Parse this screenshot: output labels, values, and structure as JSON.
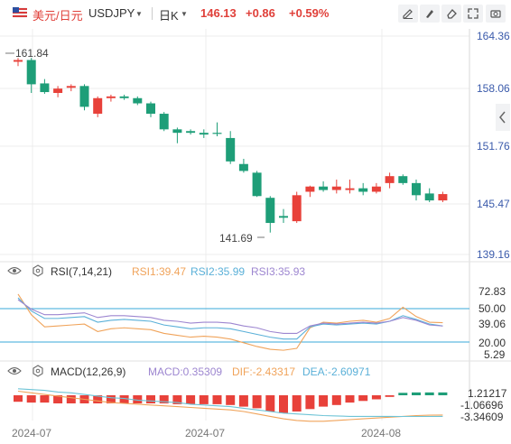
{
  "header": {
    "pair_name": "美元/日元",
    "code": "USDJPY",
    "period": "日K",
    "price": "146.13",
    "change": "+0.86",
    "change_pct": "+0.59%"
  },
  "colors": {
    "up": "#e8413a",
    "down": "#1e9e78",
    "rsi1": "#f0a35a",
    "rsi2": "#5ab0d8",
    "rsi3": "#9d86d0",
    "dif": "#f0a35a",
    "dea": "#6ec4d6",
    "level": "#3aa9d9"
  },
  "icons": [
    "flag-icon",
    "pencil-icon",
    "draw-icon",
    "eraser-icon",
    "fullscreen-icon",
    "camera-icon",
    "expand-side-icon",
    "eye-icon",
    "gear-icon"
  ],
  "chart_data": [
    {
      "type": "candlestick",
      "ylim": [
        139.16,
        164.36
      ],
      "y_ticks": [
        "164.36",
        "158.06",
        "151.76",
        "145.47",
        "139.16"
      ],
      "x_ticks": [
        "2024-07",
        "2024-07",
        "2024-08"
      ],
      "annotations": {
        "max": "161.84",
        "min": "141.69"
      },
      "candles": [
        {
          "o": 161.4,
          "h": 161.84,
          "l": 160.9,
          "c": 161.6
        },
        {
          "o": 161.6,
          "h": 161.84,
          "l": 157.8,
          "c": 158.8
        },
        {
          "o": 158.9,
          "h": 159.4,
          "l": 157.7,
          "c": 157.9
        },
        {
          "o": 157.8,
          "h": 158.6,
          "l": 157.3,
          "c": 158.3
        },
        {
          "o": 158.4,
          "h": 158.8,
          "l": 158.0,
          "c": 158.6
        },
        {
          "o": 158.6,
          "h": 158.8,
          "l": 155.8,
          "c": 156.2
        },
        {
          "o": 155.4,
          "h": 157.4,
          "l": 155.0,
          "c": 157.2
        },
        {
          "o": 157.2,
          "h": 157.6,
          "l": 156.8,
          "c": 157.4
        },
        {
          "o": 157.4,
          "h": 157.6,
          "l": 157.0,
          "c": 157.2
        },
        {
          "o": 157.2,
          "h": 157.4,
          "l": 156.4,
          "c": 156.6
        },
        {
          "o": 156.6,
          "h": 156.8,
          "l": 155.0,
          "c": 155.4
        },
        {
          "o": 155.4,
          "h": 155.6,
          "l": 153.4,
          "c": 153.6
        },
        {
          "o": 153.6,
          "h": 153.8,
          "l": 152.0,
          "c": 153.2
        },
        {
          "o": 153.4,
          "h": 153.6,
          "l": 153.0,
          "c": 153.2
        },
        {
          "o": 153.2,
          "h": 153.6,
          "l": 152.6,
          "c": 153.0
        },
        {
          "o": 153.2,
          "h": 154.4,
          "l": 152.8,
          "c": 153.1
        },
        {
          "o": 152.6,
          "h": 153.4,
          "l": 149.6,
          "c": 149.9
        },
        {
          "o": 149.6,
          "h": 150.2,
          "l": 148.6,
          "c": 148.8
        },
        {
          "o": 148.6,
          "h": 148.8,
          "l": 145.8,
          "c": 145.9
        },
        {
          "o": 145.7,
          "h": 145.9,
          "l": 141.69,
          "c": 142.8
        },
        {
          "o": 143.6,
          "h": 144.4,
          "l": 142.8,
          "c": 143.4
        },
        {
          "o": 143.0,
          "h": 146.4,
          "l": 142.8,
          "c": 146.0
        },
        {
          "o": 146.4,
          "h": 147.1,
          "l": 145.8,
          "c": 147.0
        },
        {
          "o": 147.0,
          "h": 147.6,
          "l": 146.4,
          "c": 146.6
        },
        {
          "o": 146.6,
          "h": 147.8,
          "l": 146.2,
          "c": 147.0
        },
        {
          "o": 146.6,
          "h": 147.8,
          "l": 146.2,
          "c": 146.8
        },
        {
          "o": 146.8,
          "h": 147.4,
          "l": 146.0,
          "c": 146.4
        },
        {
          "o": 146.4,
          "h": 147.4,
          "l": 146.2,
          "c": 147.0
        },
        {
          "o": 147.4,
          "h": 148.6,
          "l": 146.8,
          "c": 148.2
        },
        {
          "o": 148.2,
          "h": 148.4,
          "l": 147.2,
          "c": 147.4
        },
        {
          "o": 147.4,
          "h": 147.8,
          "l": 145.4,
          "c": 146.0
        },
        {
          "o": 146.2,
          "h": 146.8,
          "l": 145.2,
          "c": 145.4
        },
        {
          "o": 145.4,
          "h": 146.4,
          "l": 145.2,
          "c": 146.13
        }
      ]
    },
    {
      "type": "line",
      "title": "RSI(7,14,21)",
      "ylim": [
        5.29,
        72.83
      ],
      "y_ticks": [
        "72.83",
        "50.00",
        "39.06",
        "20.00",
        "5.29"
      ],
      "levels": [
        50,
        20
      ],
      "series": [
        {
          "name": "RSI1:39.47",
          "values": [
            70,
            48,
            35,
            36,
            37,
            38,
            30,
            33,
            34,
            33,
            32,
            28,
            26,
            24,
            25,
            24,
            22,
            18,
            14,
            11,
            10,
            12,
            34,
            40,
            39,
            41,
            42,
            40,
            44,
            56,
            46,
            40,
            39.47
          ]
        },
        {
          "name": "RSI2:35.99",
          "values": [
            66,
            52,
            44,
            44,
            45,
            46,
            40,
            42,
            43,
            42,
            41,
            37,
            35,
            33,
            34,
            34,
            33,
            30,
            27,
            24,
            22,
            22,
            35,
            38,
            37,
            38,
            39,
            38,
            41,
            47,
            43,
            38,
            35.99
          ]
        },
        {
          "name": "RSI3:35.93",
          "values": [
            64,
            54,
            48,
            48,
            49,
            50,
            45,
            47,
            47,
            46,
            45,
            42,
            41,
            39,
            40,
            40,
            39,
            36,
            34,
            30,
            28,
            28,
            36,
            39,
            38,
            39,
            40,
            39,
            41,
            45,
            42,
            37,
            35.93
          ]
        }
      ]
    },
    {
      "type": "bar",
      "title": "MACD(12,26,9)",
      "y_ticks": [
        "1.21217",
        "-1.06696",
        "-3.34609"
      ],
      "series": [
        {
          "name": "MACD:0.35309",
          "values": [
            -0.8,
            -0.9,
            -0.9,
            -1.0,
            -1.0,
            -1.0,
            -1.0,
            -1.0,
            -1.0,
            -1.0,
            -1.0,
            -1.0,
            -1.1,
            -1.1,
            -1.1,
            -1.1,
            -1.2,
            -1.4,
            -1.6,
            -2.0,
            -2.2,
            -2.0,
            -1.7,
            -1.4,
            -1.2,
            -0.9,
            -0.7,
            -0.5,
            -0.2,
            0.3,
            0.35,
            0.35,
            0.35
          ]
        },
        {
          "name": "DIF:-2.43317",
          "values": [
            0.5,
            0.3,
            0.1,
            -0.1,
            -0.3,
            -0.5,
            -0.7,
            -0.9,
            -1.0,
            -1.1,
            -1.2,
            -1.3,
            -1.4,
            -1.5,
            -1.6,
            -1.7,
            -1.8,
            -2.0,
            -2.3,
            -2.6,
            -2.9,
            -3.1,
            -3.2,
            -3.2,
            -3.1,
            -3.0,
            -2.9,
            -2.8,
            -2.7,
            -2.6,
            -2.5,
            -2.45,
            -2.43317
          ]
        },
        {
          "name": "DEA:-2.60971",
          "values": [
            0.8,
            0.7,
            0.6,
            0.4,
            0.3,
            0.1,
            -0.1,
            -0.3,
            -0.4,
            -0.6,
            -0.7,
            -0.8,
            -0.9,
            -1.1,
            -1.2,
            -1.3,
            -1.4,
            -1.6,
            -1.8,
            -2.0,
            -2.2,
            -2.3,
            -2.4,
            -2.5,
            -2.55,
            -2.6,
            -2.6,
            -2.6,
            -2.6,
            -2.61,
            -2.61,
            -2.61,
            -2.60971
          ]
        }
      ]
    }
  ]
}
